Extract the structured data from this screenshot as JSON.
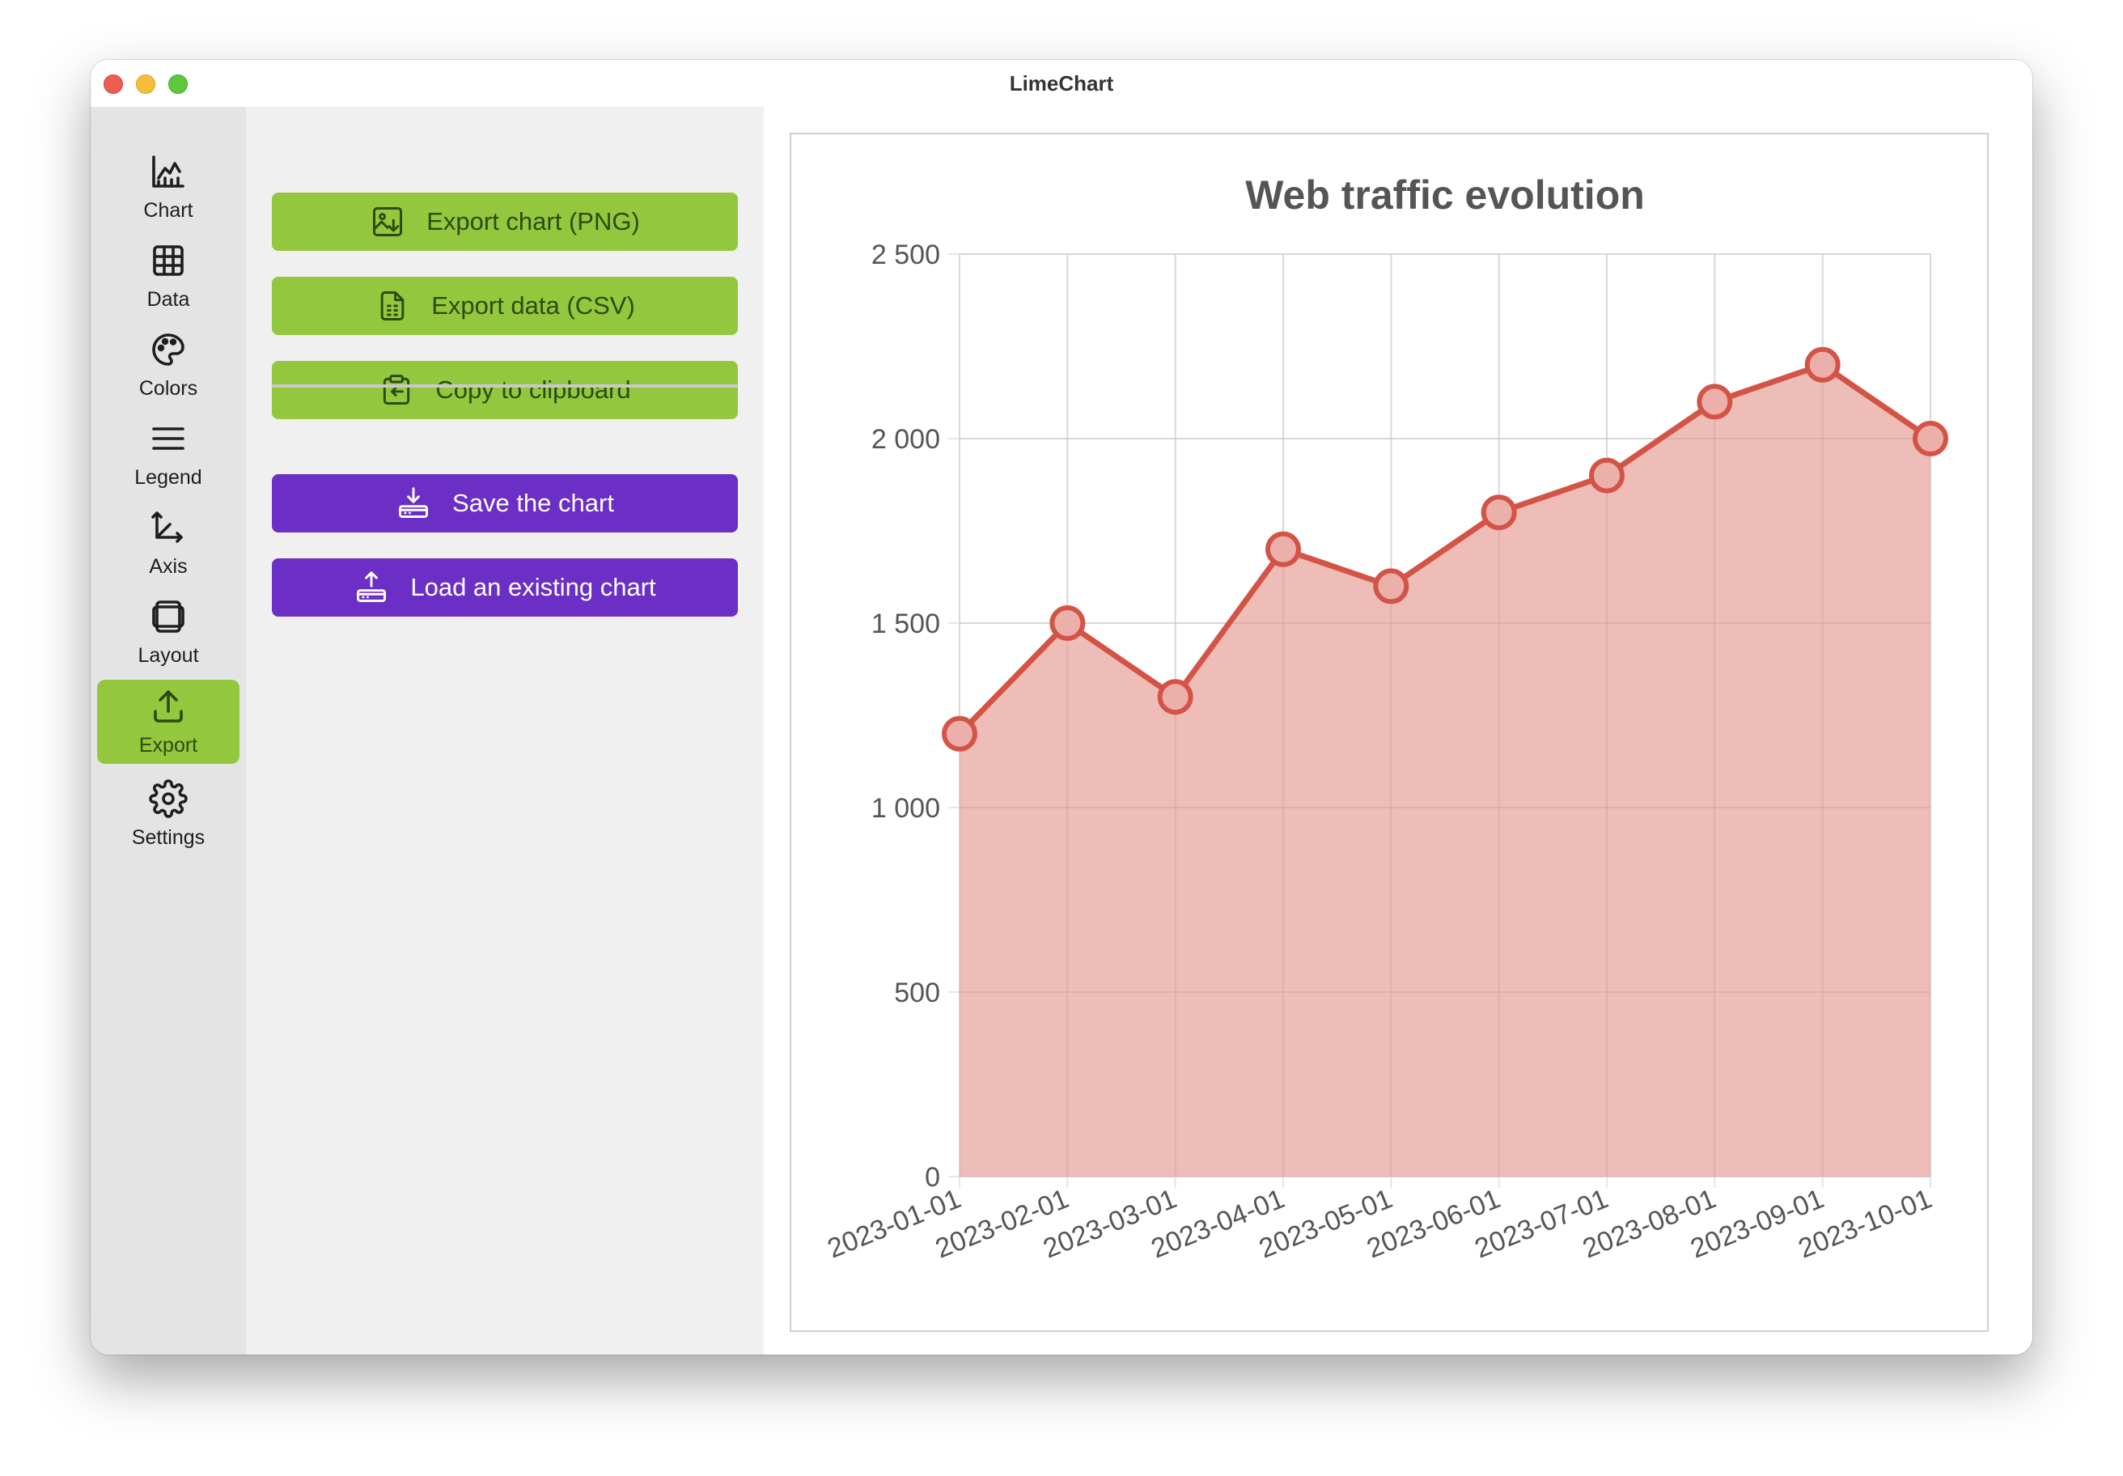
{
  "window": {
    "title": "LimeChart"
  },
  "sidebar": {
    "items": [
      {
        "key": "chart",
        "label": "Chart",
        "icon": "chart-icon",
        "active": false
      },
      {
        "key": "data",
        "label": "Data",
        "icon": "table-icon",
        "active": false
      },
      {
        "key": "colors",
        "label": "Colors",
        "icon": "palette-icon",
        "active": false
      },
      {
        "key": "legend",
        "label": "Legend",
        "icon": "menu-icon",
        "active": false
      },
      {
        "key": "axis",
        "label": "Axis",
        "icon": "axis-icon",
        "active": false
      },
      {
        "key": "layout",
        "label": "Layout",
        "icon": "layout-icon",
        "active": false
      },
      {
        "key": "export",
        "label": "Export",
        "icon": "upload-icon",
        "active": true
      },
      {
        "key": "settings",
        "label": "Settings",
        "icon": "gear-icon",
        "active": false
      }
    ]
  },
  "export_panel": {
    "export_png": "Export chart (PNG)",
    "export_csv": "Export data (CSV)",
    "copy_clipboard": "Copy to clipboard",
    "save_chart": "Save the chart",
    "load_chart": "Load an existing chart"
  },
  "colors": {
    "accent_green": "#93c83e",
    "accent_purple": "#6c2fc6",
    "series_line": "#d35446",
    "series_fill": "#edb9b3"
  },
  "chart_data": {
    "type": "area",
    "title": "Web traffic evolution",
    "x": [
      "2023-01-01",
      "2023-02-01",
      "2023-03-01",
      "2023-04-01",
      "2023-05-01",
      "2023-06-01",
      "2023-07-01",
      "2023-08-01",
      "2023-09-01",
      "2023-10-01"
    ],
    "series": [
      {
        "values": [
          1200,
          1500,
          1300,
          1700,
          1600,
          1800,
          1900,
          2100,
          2200,
          2000
        ]
      }
    ],
    "yticks": [
      "0",
      "500",
      "1 000",
      "1 500",
      "2 000",
      "2 500"
    ],
    "ylim": [
      0,
      2500
    ],
    "grid": true,
    "legend": "none"
  }
}
